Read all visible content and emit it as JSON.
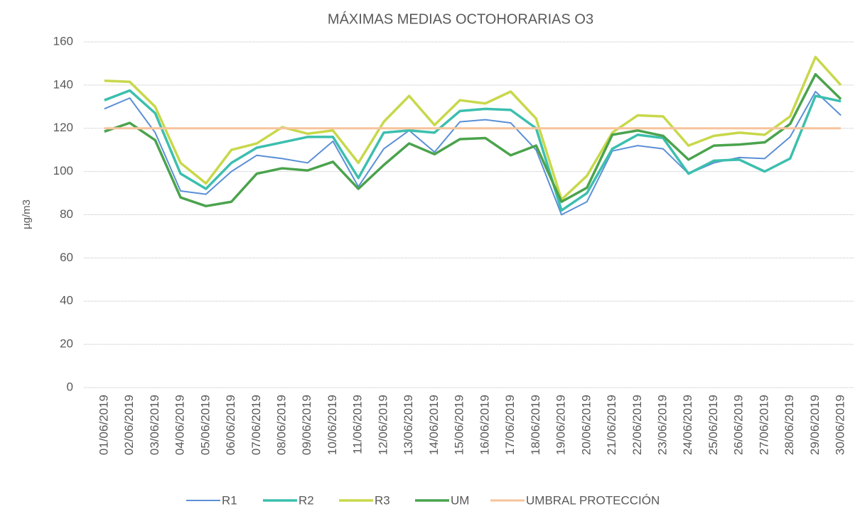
{
  "chart_data": {
    "type": "line",
    "title": "MÁXIMAS MEDIAS OCTOHORARIAS  O3",
    "y_label": "µg/m3",
    "categories": [
      "01/06/2019",
      "02/06/2019",
      "03/06/2019",
      "04/06/2019",
      "05/06/2019",
      "06/06/2019",
      "07/06/2019",
      "08/06/2019",
      "09/06/2019",
      "10/06/2019",
      "11/06/2019",
      "12/06/2019",
      "13/06/2019",
      "14/06/2019",
      "15/06/2019",
      "16/06/2019",
      "17/06/2019",
      "18/06/2019",
      "19/06/2019",
      "20/06/2019",
      "21/06/2019",
      "22/06/2019",
      "23/06/2019",
      "24/06/2019",
      "25/06/2019",
      "26/06/2019",
      "27/06/2019",
      "28/06/2019",
      "29/06/2019",
      "30/06/2019"
    ],
    "series": [
      {
        "name": "R1",
        "color": "#5b8fd6",
        "width": 2,
        "values": [
          129,
          134,
          118,
          91,
          89.5,
          100,
          107.5,
          106,
          104,
          114,
          93,
          110.5,
          119,
          109,
          123,
          124,
          122.5,
          110,
          80,
          86,
          109.5,
          112,
          110.5,
          99,
          104,
          106.5,
          106,
          116,
          137,
          126
        ]
      },
      {
        "name": "R2",
        "color": "#3cbfae",
        "width": 3.5,
        "values": [
          133,
          137.5,
          127,
          99,
          92,
          104,
          111,
          113.5,
          116,
          116,
          97,
          118,
          119,
          118,
          128,
          129,
          128.5,
          120,
          82,
          90,
          110.5,
          117,
          115.5,
          99,
          105,
          105.5,
          100,
          106,
          135,
          132.5
        ]
      },
      {
        "name": "R3",
        "color": "#c8d84a",
        "width": 3.5,
        "values": [
          142,
          141.5,
          130,
          104,
          94.5,
          110,
          113,
          120.5,
          117.5,
          119,
          104,
          123,
          135,
          121.5,
          133,
          131.5,
          137,
          124.5,
          87,
          98,
          118,
          126,
          125.5,
          112,
          116.5,
          118,
          117,
          125.5,
          153,
          140
        ]
      },
      {
        "name": "UM",
        "color": "#4aa34c",
        "width": 3.5,
        "values": [
          118.5,
          122.5,
          114.5,
          88,
          84,
          86,
          99,
          101.5,
          100.5,
          104.5,
          92,
          103,
          113,
          108,
          115,
          115.5,
          107.5,
          112,
          86,
          92.5,
          117,
          119,
          116.5,
          105.5,
          112,
          112.5,
          113.5,
          122,
          145,
          133.5
        ]
      },
      {
        "name": "UMBRAL PROTECCIÓN",
        "color": "#f6c39c",
        "width": 3,
        "values": [
          120,
          120,
          120,
          120,
          120,
          120,
          120,
          120,
          120,
          120,
          120,
          120,
          120,
          120,
          120,
          120,
          120,
          120,
          120,
          120,
          120,
          120,
          120,
          120,
          120,
          120,
          120,
          120,
          120,
          120
        ]
      }
    ],
    "ylim": [
      0,
      160
    ],
    "yticks": [
      0,
      20,
      40,
      60,
      80,
      100,
      120,
      140,
      160
    ],
    "grid": true
  }
}
